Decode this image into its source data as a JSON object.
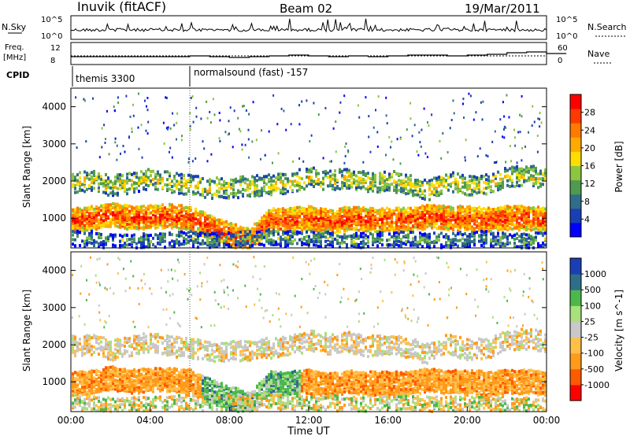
{
  "header": {
    "title": "Inuvik (fitACF)",
    "beam": "Beam 02",
    "date": "19/Mar/2011"
  },
  "summary_panel": {
    "left_label": "N.Sky",
    "left_ticks": [
      "10^5",
      "10^0"
    ],
    "right_label": "N.Search",
    "right_ticks": [
      "10^5",
      "10^0"
    ]
  },
  "freq_panel": {
    "left_label_line1": "Freq.",
    "left_label_line2": "[MHz]",
    "left_ticks": [
      "12",
      "8"
    ],
    "right_label": "Nave",
    "right_ticks": [
      "60",
      "0"
    ]
  },
  "cpid": {
    "label": "CPID",
    "modes": [
      {
        "start_hour": 0,
        "name": "themis 3300"
      },
      {
        "start_hour": 6,
        "name": "normalsound (fast) -157"
      }
    ]
  },
  "x_axis": {
    "label": "Time UT",
    "ticks": [
      "00:00",
      "04:00",
      "08:00",
      "12:00",
      "16:00",
      "20:00",
      "00:00"
    ]
  },
  "chart_data": [
    {
      "type": "heatmap",
      "title": "",
      "xlabel": "Time UT",
      "ylabel": "Slant Range [km]",
      "xlim": [
        0,
        24
      ],
      "ylim": [
        200,
        4500
      ],
      "y_ticks": [
        1000,
        2000,
        3000,
        4000
      ],
      "colorbar": {
        "label": "Power [dB]",
        "ticks": [
          "4",
          "8",
          "12",
          "16",
          "20",
          "24",
          "28"
        ],
        "colors": [
          "#0000ff",
          "#1a3fb5",
          "#2f6e8a",
          "#4f9a4f",
          "#8cc63f",
          "#ffdd00",
          "#ffaa00",
          "#ff7a00",
          "#ff3a00",
          "#ff0000"
        ]
      },
      "bands": [
        {
          "name": "main_echo",
          "center_km": [
            1000,
            1050,
            1150,
            1050,
            1100,
            1100,
            1050,
            800,
            600,
            450,
            1000,
            1000,
            1050,
            950,
            1050,
            1000,
            1000,
            1000,
            1100,
            1050,
            1050,
            1000,
            1050,
            1050,
            1000
          ],
          "width_km": 300,
          "level": 0.9
        },
        {
          "name": "upper_echo",
          "center_km": [
            2000,
            2050,
            1900,
            2000,
            2100,
            2000,
            1950,
            1850,
            1850,
            1900,
            1950,
            2000,
            2150,
            2050,
            2100,
            2000,
            2050,
            1950,
            1800,
            2050,
            1900,
            1950,
            2150,
            2200,
            2100
          ],
          "width_km": 250,
          "level": 0.55
        },
        {
          "name": "near_range",
          "center_km": [
            500,
            500,
            450,
            450,
            450,
            500,
            500,
            450,
            500,
            500,
            550,
            500,
            500,
            500,
            450,
            450,
            500,
            500,
            450,
            450,
            500,
            500,
            450,
            450,
            500
          ],
          "width_km": 200,
          "level": 0.35
        }
      ]
    },
    {
      "type": "heatmap",
      "title": "",
      "xlabel": "Time UT",
      "ylabel": "Slant Range [km]",
      "xlim": [
        0,
        24
      ],
      "ylim": [
        200,
        4500
      ],
      "y_ticks": [
        1000,
        2000,
        3000,
        4000
      ],
      "colorbar": {
        "label": "Velocity [m s^-1]",
        "ticks": [
          "-1000",
          "-500",
          "-100",
          "-25",
          "25",
          "100",
          "500",
          "1000"
        ],
        "colors": [
          "#ff0000",
          "#ff5a00",
          "#ff9a1a",
          "#ffc04a",
          "#c8c8c8",
          "#a8e07a",
          "#4cb84c",
          "#2f6e8a",
          "#1a3fb5"
        ]
      },
      "bands": [
        {
          "name": "main_echo",
          "center_km": [
            1000,
            1050,
            1150,
            1050,
            1100,
            1100,
            1050,
            800,
            600,
            450,
            1000,
            1000,
            1050,
            950,
            1050,
            1000,
            1000,
            1000,
            1100,
            1050,
            1050,
            1000,
            1050,
            1050,
            1000
          ],
          "width_km": 300
        },
        {
          "name": "upper_echo",
          "center_km": [
            2000,
            2050,
            1900,
            2000,
            2100,
            2000,
            1950,
            1850,
            1850,
            1900,
            1950,
            2000,
            2150,
            2050,
            2100,
            2000,
            2050,
            1950,
            1800,
            2050,
            1900,
            1950,
            2150,
            2200,
            2100
          ],
          "width_km": 250
        },
        {
          "name": "near_range",
          "center_km": [
            500,
            500,
            450,
            450,
            450,
            500,
            500,
            450,
            500,
            500,
            550,
            500,
            500,
            500,
            450,
            450,
            500,
            500,
            450,
            450,
            500,
            500,
            450,
            450,
            500
          ],
          "width_km": 200
        }
      ]
    }
  ]
}
